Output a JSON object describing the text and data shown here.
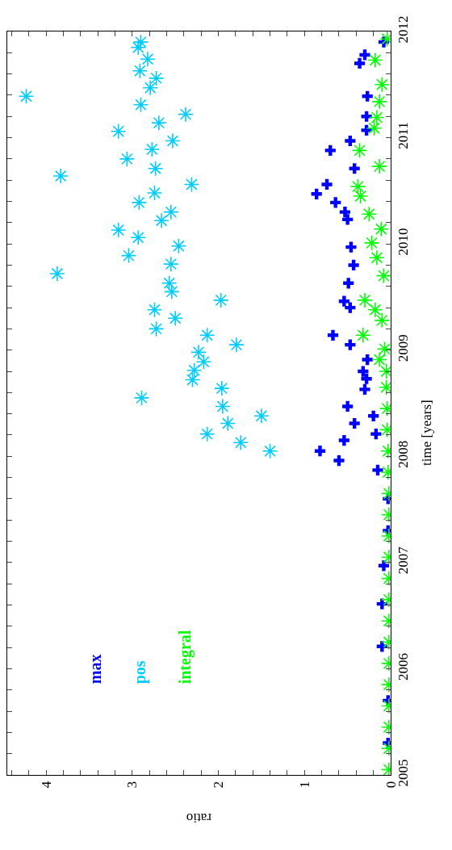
{
  "chart_data": {
    "type": "scatter",
    "xlabel": "ratio",
    "ylabel": "time [years]",
    "xlim": [
      4.45,
      0
    ],
    "ylim": [
      2005,
      2012
    ],
    "yticks": [
      2005,
      2006,
      2007,
      2008,
      2009,
      2010,
      2011,
      2012,
      {
        "value": 2005.2,
        "label": null
      },
      {
        "value": 2005.4,
        "label": null
      },
      {
        "value": 2005.6,
        "label": null
      },
      {
        "value": 2005.8,
        "label": null
      },
      {
        "value": 2006.2,
        "label": null
      },
      {
        "value": 2006.4,
        "label": null
      },
      {
        "value": 2006.6,
        "label": null
      },
      {
        "value": 2006.8,
        "label": null
      },
      {
        "value": 2007.2,
        "label": null
      },
      {
        "value": 2007.4,
        "label": null
      },
      {
        "value": 2007.6,
        "label": null
      },
      {
        "value": 2007.8,
        "label": null
      },
      {
        "value": 2008.2,
        "label": null
      },
      {
        "value": 2008.4,
        "label": null
      },
      {
        "value": 2008.6,
        "label": null
      },
      {
        "value": 2008.8,
        "label": null
      },
      {
        "value": 2009.2,
        "label": null
      },
      {
        "value": 2009.4,
        "label": null
      },
      {
        "value": 2009.6,
        "label": null
      },
      {
        "value": 2009.8,
        "label": null
      },
      {
        "value": 2010.2,
        "label": null
      },
      {
        "value": 2010.4,
        "label": null
      },
      {
        "value": 2010.6,
        "label": null
      },
      {
        "value": 2010.8,
        "label": null
      },
      {
        "value": 2011.2,
        "label": null
      },
      {
        "value": 2011.4,
        "label": null
      },
      {
        "value": 2011.6,
        "label": null
      },
      {
        "value": 2011.8,
        "label": null
      }
    ],
    "xticks": [
      0,
      1,
      2,
      3,
      4,
      {
        "value": 0.2,
        "label": null
      },
      {
        "value": 0.4,
        "label": null
      },
      {
        "value": 0.6,
        "label": null
      },
      {
        "value": 0.8,
        "label": null
      },
      {
        "value": 1.2,
        "label": null
      },
      {
        "value": 1.4,
        "label": null
      },
      {
        "value": 1.6,
        "label": null
      },
      {
        "value": 1.8,
        "label": null
      },
      {
        "value": 2.2,
        "label": null
      },
      {
        "value": 2.4,
        "label": null
      },
      {
        "value": 2.6,
        "label": null
      },
      {
        "value": 2.8,
        "label": null
      },
      {
        "value": 3.2,
        "label": null
      },
      {
        "value": 3.4,
        "label": null
      },
      {
        "value": 3.6,
        "label": null
      },
      {
        "value": 3.8,
        "label": null
      },
      {
        "value": 4.2,
        "label": null
      },
      {
        "value": 4.4,
        "label": null
      }
    ],
    "legend": "bottom left",
    "series": [
      {
        "name": "max",
        "color": "#0000ff",
        "marker": "cross",
        "values": [
          2005.3,
          2005.7,
          2006.21,
          2006.61,
          2006.97,
          2007.3,
          2007.6,
          2007.87,
          2007.96,
          2008.05,
          2008.15,
          2008.21,
          2008.31,
          2008.38,
          2008.47,
          2008.63,
          2008.73,
          2008.8,
          2008.91,
          2009.05,
          2009.14,
          2009.4,
          2009.46,
          2009.63,
          2009.8,
          2009.97,
          2010.23,
          2010.3,
          2010.39,
          2010.47,
          2010.56,
          2010.71,
          2010.88,
          2010.97,
          2011.07,
          2011.2,
          2011.39,
          2011.7,
          2011.78,
          2011.9
        ],
        "x": [
          0.03,
          0.03,
          0.1,
          0.1,
          0.08,
          0.03,
          0.03,
          0.15,
          0.6,
          0.82,
          0.54,
          0.17,
          0.42,
          0.2,
          0.5,
          0.3,
          0.28,
          0.32,
          0.27,
          0.47,
          0.67,
          0.47,
          0.54,
          0.49,
          0.43,
          0.46,
          0.5,
          0.53,
          0.64,
          0.86,
          0.74,
          0.42,
          0.7,
          0.47,
          0.28,
          0.28,
          0.27,
          0.36,
          0.3,
          0.08
        ]
      },
      {
        "name": "pos",
        "color": "#00ccff",
        "values": [
          2008.05,
          2008.13,
          2008.21,
          2008.31,
          2008.38,
          2008.47,
          2008.55,
          2008.64,
          2008.72,
          2008.81,
          2008.89,
          2008.98,
          2009.05,
          2009.14,
          2009.2,
          2009.3,
          2009.38,
          2009.47,
          2009.55,
          2009.63,
          2009.72,
          2009.81,
          2009.89,
          2009.98,
          2010.06,
          2010.13,
          2010.22,
          2010.3,
          2010.39,
          2010.48,
          2010.56,
          2010.64,
          2010.71,
          2010.8,
          2010.89,
          2010.97,
          2011.06,
          2011.14,
          2011.22,
          2011.31,
          2011.39,
          2011.47,
          2011.56,
          2011.63,
          2011.74,
          2011.85,
          2011.9
        ],
        "x": [
          1.4,
          1.74,
          2.13,
          1.89,
          1.5,
          1.95,
          2.89,
          1.96,
          2.3,
          2.28,
          2.17,
          2.23,
          1.79,
          2.13,
          2.72,
          2.5,
          2.74,
          1.97,
          2.54,
          2.57,
          3.87,
          2.55,
          3.04,
          2.46,
          2.93,
          3.16,
          2.66,
          2.55,
          2.92,
          2.74,
          2.31,
          3.83,
          2.73,
          3.06,
          2.77,
          2.53,
          3.16,
          2.69,
          2.38,
          2.9,
          4.23,
          2.79,
          2.72,
          2.91,
          2.82,
          2.93,
          2.9
        ]
      },
      {
        "name": "integral",
        "color": "#00ff00",
        "values": [
          2005.05,
          2005.25,
          2005.45,
          2005.65,
          2005.85,
          2006.05,
          2006.25,
          2006.45,
          2006.65,
          2006.85,
          2007.05,
          2007.25,
          2007.45,
          2007.65,
          2007.85,
          2008.05,
          2008.25,
          2008.45,
          2008.65,
          2008.8,
          2008.91,
          2009.01,
          2009.14,
          2009.28,
          2009.38,
          2009.47,
          2009.7,
          2009.87,
          2010.01,
          2010.14,
          2010.28,
          2010.45,
          2010.54,
          2010.73,
          2010.88,
          2011.09,
          2011.19,
          2011.34,
          2011.5,
          2011.73,
          2011.93
        ],
        "x": [
          0.02,
          0.02,
          0.02,
          0.02,
          0.02,
          0.02,
          0.02,
          0.02,
          0.02,
          0.02,
          0.02,
          0.02,
          0.02,
          0.02,
          0.03,
          0.03,
          0.04,
          0.04,
          0.05,
          0.05,
          0.13,
          0.07,
          0.32,
          0.1,
          0.18,
          0.3,
          0.08,
          0.16,
          0.22,
          0.11,
          0.25,
          0.35,
          0.38,
          0.13,
          0.36,
          0.19,
          0.16,
          0.13,
          0.1,
          0.18,
          0.04
        ]
      }
    ]
  }
}
